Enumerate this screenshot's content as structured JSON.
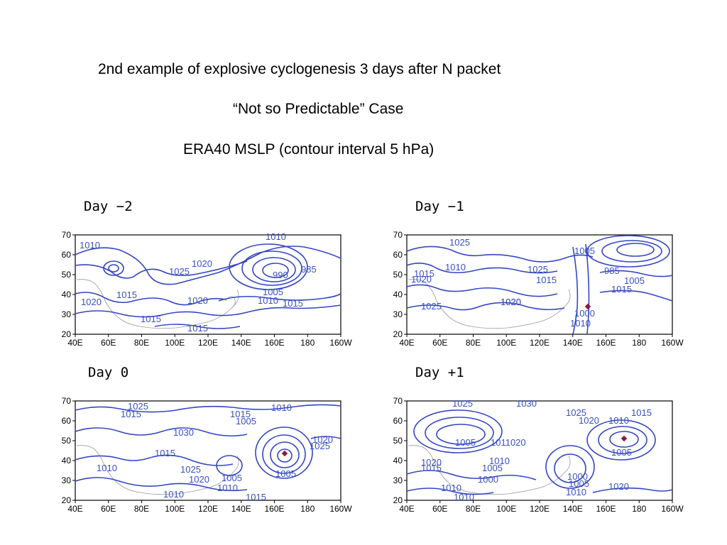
{
  "title": {
    "line1": "2nd example of explosive cyclogenesis 3 days after N packet",
    "line2": "“Not so Predictable” Case",
    "line3": "ERA40 MSLP (contour interval 5 hPa)"
  },
  "axes": {
    "y_ticks": [
      "70",
      "60",
      "50",
      "40",
      "30",
      "20"
    ],
    "x_ticks": [
      "40E",
      "60E",
      "80E",
      "100E",
      "120E",
      "140E",
      "160E",
      "180",
      "160W"
    ]
  },
  "colors": {
    "contour": "#3446c4",
    "marker": "#8b1a4a",
    "coast": "#9a9a9a"
  },
  "panels": [
    {
      "id": "day-minus-2",
      "label": "Day −2",
      "contour_labels": [
        "1010",
        "1020",
        "1025",
        "1010",
        "990",
        "985",
        "1015",
        "1020",
        "1015",
        "1020",
        "1005",
        "1010",
        "1015",
        "1015"
      ]
    },
    {
      "id": "day-minus-1",
      "label": "Day −1",
      "contour_labels": [
        "1025",
        "1005",
        "1010",
        "1015",
        "1020",
        "1025",
        "1015",
        "1020",
        "1025",
        "985",
        "1005",
        "1015",
        "1000",
        "1010",
        "1020"
      ]
    },
    {
      "id": "day-0",
      "label": "Day 0",
      "contour_labels": [
        "1025",
        "1015",
        "1015",
        "1005",
        "1010",
        "1030",
        "1015",
        "1010",
        "1025",
        "1020",
        "1005",
        "1010",
        "1005",
        "1020",
        "1025",
        "1010",
        "1015"
      ]
    },
    {
      "id": "day-plus-1",
      "label": "Day +1",
      "contour_labels": [
        "1025",
        "1030",
        "1025",
        "1015",
        "1020",
        "1010",
        "1005",
        "1011020",
        "1005",
        "1020",
        "1015",
        "1010",
        "1005",
        "1000",
        "1010",
        "1000",
        "1005",
        "1010",
        "1020",
        "1010"
      ]
    }
  ]
}
